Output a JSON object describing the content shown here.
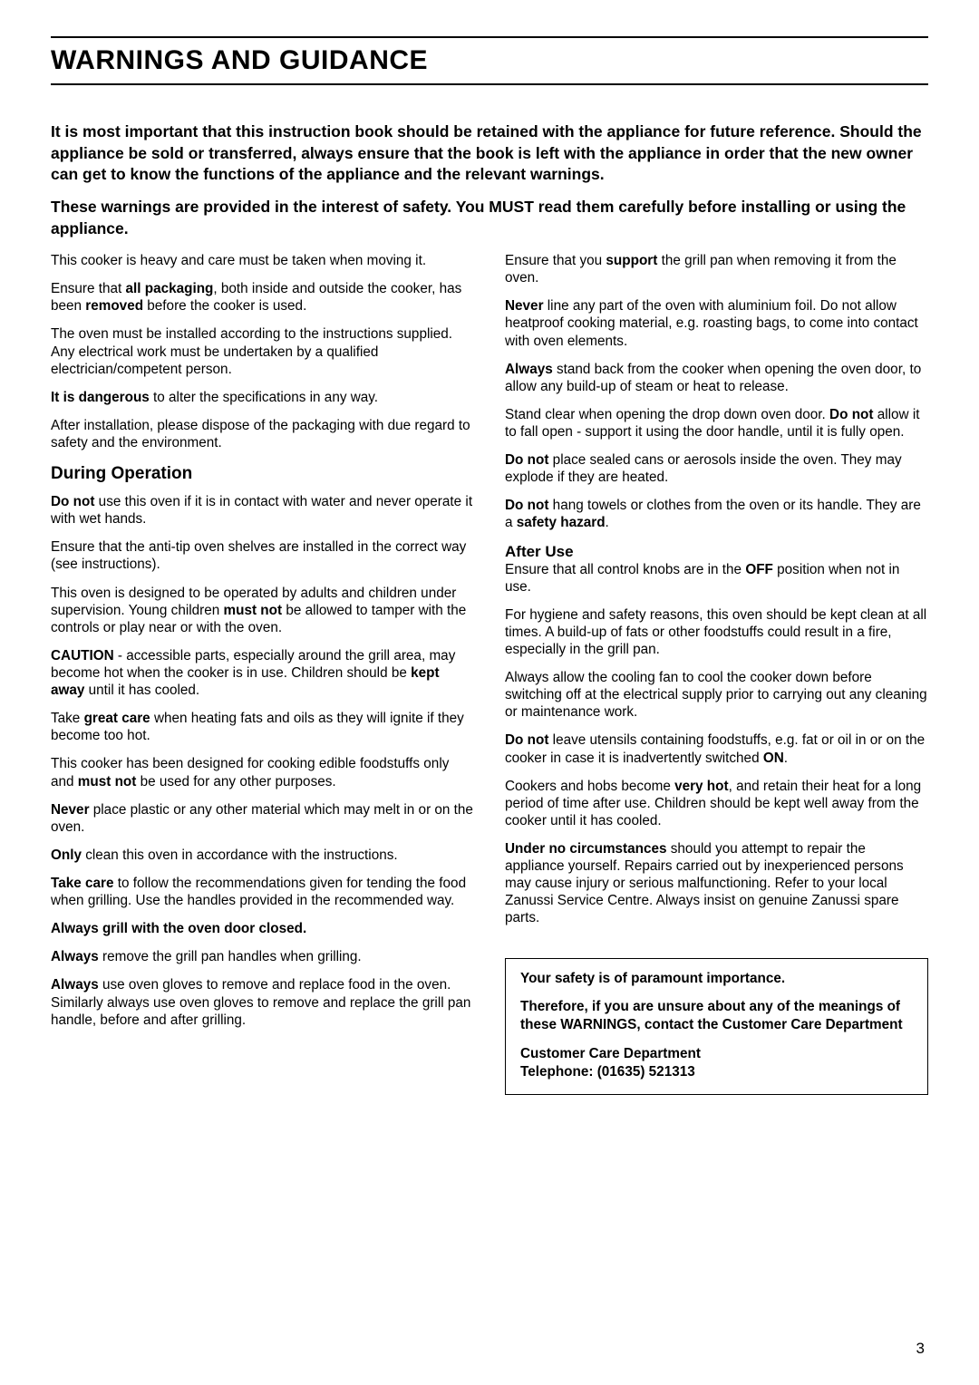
{
  "title": "WARNINGS AND GUIDANCE",
  "intro": {
    "p1": "It is most important that this instruction book should be retained with the appliance for future reference. Should the appliance be sold or transferred, always ensure that the book is left with the appliance in order that the new owner can get to know the functions of the appliance and the relevant warnings.",
    "p2": "These warnings are provided in the interest of safety. You MUST read them carefully before installing or using the appliance."
  },
  "left": {
    "p1a": "This cooker is heavy and care must be taken when moving it.",
    "p2a": "Ensure that ",
    "p2b": "all packaging",
    "p2c": ", both inside and outside the cooker, has been ",
    "p2d": "removed",
    "p2e": " before the cooker is used.",
    "p3a": "The oven must be installed according to the instructions supplied. Any electrical work must be undertaken by a qualified electrician/competent person.",
    "p4a": "It is dangerous",
    "p4b": " to alter the specifications in any way.",
    "p5a": "After installation, please dispose of the packaging with due regard to safety and the environment.",
    "h_during": "During Operation",
    "d1a": "Do not",
    "d1b": " use this oven if it is in contact with water and never operate it with wet hands.",
    "d2a": "Ensure that the anti-tip oven shelves are installed in the correct way (see instructions).",
    "d3a": "This oven is designed to be operated by adults and children under supervision. Young children ",
    "d3b": "must not",
    "d3c": " be allowed to tamper with the controls or play near or with the oven.",
    "d4a": "CAUTION",
    "d4b": " - accessible parts, especially around the grill area, may become hot when the cooker is in use. Children should be ",
    "d4c": "kept away",
    "d4d": " until it has cooled.",
    "d5a": "Take ",
    "d5b": "great care",
    "d5c": " when heating fats and oils as they will ignite if they become too hot.",
    "d6a": "This cooker has been designed for cooking edible foodstuffs only and ",
    "d6b": "must not",
    "d6c": " be used for any other purposes.",
    "d7a": "Never",
    "d7b": " place plastic or any other material which may melt in or on the oven.",
    "d8a": "Only",
    "d8b": " clean this oven in accordance with the instructions.",
    "d9a": "Take care",
    "d9b": " to follow the recommendations given for tending the food when grilling. Use the handles provided in the recommended way.",
    "d10": "Always grill with the oven door closed.",
    "d11a": "Always",
    "d11b": " remove the grill pan handles when grilling.",
    "d12a": "Always",
    "d12b": " use oven gloves to remove and replace food in the oven. Similarly always use oven gloves to remove and replace the grill pan handle, before and after grilling."
  },
  "right": {
    "r1a": "Ensure that you ",
    "r1b": "support",
    "r1c": " the grill pan when removing it from the oven.",
    "r2a": "Never",
    "r2b": " line any part of the oven with aluminium foil. Do not allow heatproof cooking material, e.g. roasting bags, to come into contact with oven elements.",
    "r3a": "Always",
    "r3b": " stand back from the cooker when opening the oven door, to allow any build-up of steam or heat to release.",
    "r4a": "Stand clear when opening the drop down oven door. ",
    "r4b": "Do not",
    "r4c": " allow it to fall open - support it using the door handle, until it is fully open.",
    "r5a": "Do not",
    "r5b": " place sealed cans or aerosols inside the oven. They may explode if they are heated.",
    "r6a": "Do not",
    "r6b": " hang towels or clothes from the oven or its handle. They are a ",
    "r6c": "safety hazard",
    "r6d": ".",
    "h_after": "After Use",
    "a1a": "Ensure that all control knobs are in the ",
    "a1b": "OFF",
    "a1c": " position when not in use.",
    "a2a": "For hygiene and safety reasons, this oven should be kept clean at all times. A build-up of fats or other foodstuffs could result in a fire, especially in the grill pan.",
    "a3a": "Always allow the cooling fan to cool the cooker down before switching off at the electrical supply prior to carrying out any cleaning or maintenance work.",
    "a4a": "Do not",
    "a4b": " leave utensils containing foodstuffs, e.g. fat or oil in or on the cooker in case it is inadvertently switched ",
    "a4c": "ON",
    "a4d": ".",
    "a5a": "Cookers and hobs become ",
    "a5b": "very hot",
    "a5c": ", and retain their heat for a long period of time after use. Children should be kept well away from the cooker until it has cooled.",
    "a6a": "Under no circumstances",
    "a6b": " should you attempt to repair the appliance yourself. Repairs carried out by inexperienced persons may cause injury or serious malfunctioning. Refer to your local Zanussi Service Centre. Always insist on genuine Zanussi spare parts."
  },
  "safety_box": {
    "s1": "Your safety is of paramount importance.",
    "s2": "Therefore, if you are unsure about any of the meanings of these WARNINGS, contact the Customer Care Department",
    "s3a": "Customer Care Department",
    "s3b": "Telephone: (01635) 521313"
  },
  "page_number": "3"
}
